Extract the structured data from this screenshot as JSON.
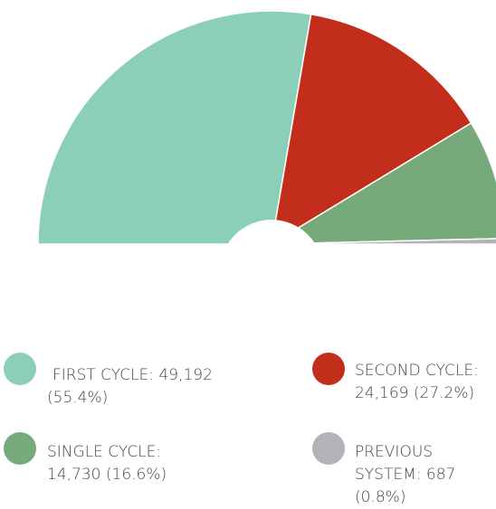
{
  "chart_data": {
    "type": "semi-donut",
    "labels": [
      "FIRST CYCLE:",
      "SECOND CYCLE:",
      "SINGLE CYCLE:",
      "PREVIOUS SYSTEM:"
    ],
    "values": [
      49192,
      24169,
      14730,
      687
    ],
    "value_labels": [
      "49,192 (55.4%)",
      "24,169 (27.2%)",
      "14,730 (16.6%)",
      "687 (0.8%)"
    ],
    "colors": [
      "#8ccfb8",
      "#c22e1b",
      "#77aa7b",
      "#b2b2b7"
    ]
  }
}
